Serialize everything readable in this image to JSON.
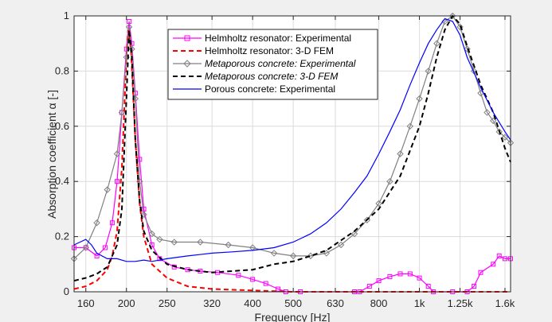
{
  "chart_data": {
    "type": "line",
    "xlabel": "Frequency [Hz]",
    "ylabel": "Absorption coefficient α [-]",
    "xscale": "log",
    "xlim": [
      150,
      1650
    ],
    "ylim": [
      0,
      1
    ],
    "grid": true,
    "legend_position": "top-center",
    "x_ticks": [
      {
        "value": 160,
        "label": "160"
      },
      {
        "value": 200,
        "label": "200"
      },
      {
        "value": 250,
        "label": "250"
      },
      {
        "value": 320,
        "label": "320"
      },
      {
        "value": 400,
        "label": "400"
      },
      {
        "value": 500,
        "label": "500"
      },
      {
        "value": 630,
        "label": "630"
      },
      {
        "value": 800,
        "label": "800"
      },
      {
        "value": 1000,
        "label": "1k"
      },
      {
        "value": 1250,
        "label": "1.25k"
      },
      {
        "value": 1600,
        "label": "1.6k"
      }
    ],
    "y_ticks": [
      {
        "value": 0,
        "label": "0"
      },
      {
        "value": 0.2,
        "label": "0.2"
      },
      {
        "value": 0.4,
        "label": "0.4"
      },
      {
        "value": 0.6,
        "label": "0.6"
      },
      {
        "value": 0.8,
        "label": "0.8"
      },
      {
        "value": 1,
        "label": "1"
      }
    ],
    "series": [
      {
        "name": "Helmholtz resonator: Experimental",
        "color": "#ff00ff",
        "style": "solid",
        "marker": "square",
        "italic": false,
        "points": [
          [
            150,
            0.16
          ],
          [
            160,
            0.16
          ],
          [
            170,
            0.13
          ],
          [
            178,
            0.16
          ],
          [
            185,
            0.25
          ],
          [
            190,
            0.4
          ],
          [
            195,
            0.65
          ],
          [
            200,
            0.88
          ],
          [
            203,
            0.98
          ],
          [
            206,
            0.9
          ],
          [
            210,
            0.72
          ],
          [
            215,
            0.48
          ],
          [
            220,
            0.3
          ],
          [
            230,
            0.17
          ],
          [
            240,
            0.12
          ],
          [
            260,
            0.09
          ],
          [
            280,
            0.08
          ],
          [
            300,
            0.075
          ],
          [
            330,
            0.07
          ],
          [
            370,
            0.06
          ],
          [
            400,
            0.045
          ],
          [
            430,
            0.03
          ],
          [
            460,
            0.01
          ],
          [
            480,
            0.0
          ],
          [
            520,
            0.0
          ],
          [
            700,
            0.0
          ],
          [
            720,
            0.0
          ],
          [
            760,
            0.02
          ],
          [
            800,
            0.04
          ],
          [
            850,
            0.055
          ],
          [
            900,
            0.065
          ],
          [
            950,
            0.065
          ],
          [
            1000,
            0.05
          ],
          [
            1050,
            0.02
          ],
          [
            1080,
            0.0
          ],
          [
            1200,
            0.0
          ],
          [
            1300,
            0.0
          ],
          [
            1350,
            0.02
          ],
          [
            1400,
            0.07
          ],
          [
            1500,
            0.1
          ],
          [
            1550,
            0.13
          ],
          [
            1600,
            0.12
          ],
          [
            1650,
            0.12
          ]
        ]
      },
      {
        "name": "Helmholtz resonator: 3-D FEM",
        "color": "#ff0000",
        "style": "dashed",
        "marker": "none",
        "italic": false,
        "points": [
          [
            150,
            0.01
          ],
          [
            160,
            0.02
          ],
          [
            170,
            0.04
          ],
          [
            180,
            0.08
          ],
          [
            185,
            0.13
          ],
          [
            190,
            0.22
          ],
          [
            195,
            0.45
          ],
          [
            200,
            0.85
          ],
          [
            202,
            0.95
          ],
          [
            205,
            0.88
          ],
          [
            210,
            0.55
          ],
          [
            215,
            0.32
          ],
          [
            220,
            0.2
          ],
          [
            230,
            0.1
          ],
          [
            250,
            0.05
          ],
          [
            280,
            0.02
          ],
          [
            320,
            0.01
          ],
          [
            400,
            0.005
          ],
          [
            500,
            0.0
          ],
          [
            1650,
            0.0
          ]
        ]
      },
      {
        "name": "Metaporous concrete: Experimental",
        "color": "#808080",
        "style": "solid",
        "marker": "diamond",
        "italic": true,
        "points": [
          [
            150,
            0.12
          ],
          [
            160,
            0.16
          ],
          [
            170,
            0.25
          ],
          [
            180,
            0.37
          ],
          [
            190,
            0.5
          ],
          [
            195,
            0.65
          ],
          [
            200,
            0.85
          ],
          [
            203,
            0.96
          ],
          [
            206,
            0.88
          ],
          [
            210,
            0.7
          ],
          [
            215,
            0.4
          ],
          [
            220,
            0.28
          ],
          [
            230,
            0.21
          ],
          [
            240,
            0.19
          ],
          [
            260,
            0.18
          ],
          [
            300,
            0.18
          ],
          [
            350,
            0.17
          ],
          [
            400,
            0.16
          ],
          [
            450,
            0.14
          ],
          [
            500,
            0.13
          ],
          [
            550,
            0.13
          ],
          [
            600,
            0.14
          ],
          [
            650,
            0.17
          ],
          [
            700,
            0.21
          ],
          [
            750,
            0.26
          ],
          [
            800,
            0.32
          ],
          [
            850,
            0.4
          ],
          [
            900,
            0.5
          ],
          [
            950,
            0.6
          ],
          [
            1000,
            0.7
          ],
          [
            1050,
            0.8
          ],
          [
            1100,
            0.9
          ],
          [
            1150,
            0.98
          ],
          [
            1200,
            1.0
          ],
          [
            1250,
            0.96
          ],
          [
            1300,
            0.88
          ],
          [
            1350,
            0.8
          ],
          [
            1400,
            0.72
          ],
          [
            1450,
            0.65
          ],
          [
            1500,
            0.62
          ],
          [
            1550,
            0.58
          ],
          [
            1600,
            0.56
          ],
          [
            1650,
            0.54
          ]
        ]
      },
      {
        "name": "Metaporous concrete: 3-D FEM",
        "color": "#000000",
        "style": "dashed",
        "marker": "none",
        "italic": true,
        "points": [
          [
            150,
            0.04
          ],
          [
            160,
            0.05
          ],
          [
            170,
            0.065
          ],
          [
            180,
            0.09
          ],
          [
            190,
            0.17
          ],
          [
            195,
            0.3
          ],
          [
            200,
            0.7
          ],
          [
            203,
            0.95
          ],
          [
            206,
            0.85
          ],
          [
            210,
            0.55
          ],
          [
            215,
            0.33
          ],
          [
            220,
            0.22
          ],
          [
            230,
            0.15
          ],
          [
            250,
            0.1
          ],
          [
            280,
            0.08
          ],
          [
            320,
            0.07
          ],
          [
            400,
            0.08
          ],
          [
            450,
            0.1
          ],
          [
            500,
            0.11
          ],
          [
            550,
            0.13
          ],
          [
            600,
            0.15
          ],
          [
            700,
            0.22
          ],
          [
            800,
            0.3
          ],
          [
            900,
            0.42
          ],
          [
            1000,
            0.6
          ],
          [
            1050,
            0.72
          ],
          [
            1100,
            0.85
          ],
          [
            1150,
            0.95
          ],
          [
            1200,
            1.0
          ],
          [
            1250,
            0.97
          ],
          [
            1300,
            0.89
          ],
          [
            1400,
            0.75
          ],
          [
            1500,
            0.65
          ],
          [
            1600,
            0.52
          ],
          [
            1650,
            0.47
          ]
        ]
      },
      {
        "name": "Porous concrete: Experimental",
        "color": "#0000ff",
        "style": "solid",
        "marker": "none",
        "italic": false,
        "points": [
          [
            150,
            0.17
          ],
          [
            155,
            0.18
          ],
          [
            160,
            0.19
          ],
          [
            165,
            0.17
          ],
          [
            170,
            0.14
          ],
          [
            180,
            0.12
          ],
          [
            190,
            0.12
          ],
          [
            200,
            0.11
          ],
          [
            210,
            0.11
          ],
          [
            220,
            0.115
          ],
          [
            230,
            0.11
          ],
          [
            250,
            0.12
          ],
          [
            280,
            0.13
          ],
          [
            320,
            0.14
          ],
          [
            360,
            0.145
          ],
          [
            400,
            0.15
          ],
          [
            450,
            0.16
          ],
          [
            500,
            0.18
          ],
          [
            550,
            0.21
          ],
          [
            600,
            0.25
          ],
          [
            650,
            0.3
          ],
          [
            700,
            0.36
          ],
          [
            750,
            0.42
          ],
          [
            800,
            0.5
          ],
          [
            850,
            0.58
          ],
          [
            900,
            0.66
          ],
          [
            950,
            0.75
          ],
          [
            1000,
            0.83
          ],
          [
            1050,
            0.9
          ],
          [
            1100,
            0.95
          ],
          [
            1150,
            0.99
          ],
          [
            1200,
            0.98
          ],
          [
            1250,
            0.93
          ],
          [
            1300,
            0.85
          ],
          [
            1400,
            0.74
          ],
          [
            1500,
            0.65
          ],
          [
            1600,
            0.58
          ],
          [
            1650,
            0.55
          ]
        ]
      }
    ]
  }
}
